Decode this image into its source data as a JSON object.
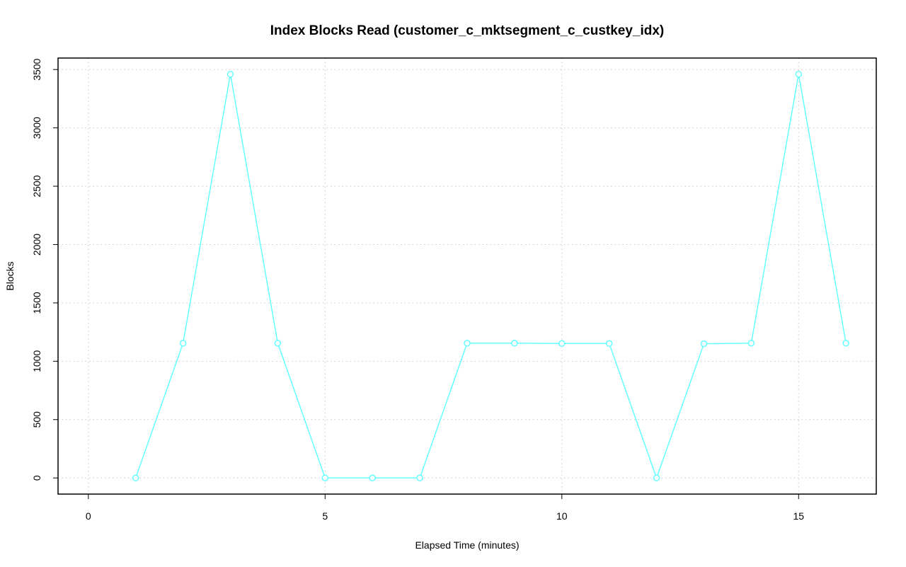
{
  "chart_data": {
    "type": "line",
    "title": "Index Blocks Read (customer_c_mktsegment_c_custkey_idx)",
    "x_label": "Elapsed Time (minutes)",
    "y_label": "Blocks",
    "x": [
      1,
      2,
      3,
      4,
      5,
      6,
      7,
      8,
      9,
      10,
      11,
      12,
      13,
      14,
      15,
      16
    ],
    "series": [
      {
        "color": "#66ffff",
        "values": [
          0,
          1155,
          3460,
          1155,
          0,
          0,
          0,
          1155,
          1155,
          1152,
          1152,
          0,
          1150,
          1155,
          3460,
          1155
        ]
      }
    ],
    "xlim": [
      -0.64,
      16.64
    ],
    "ylim": [
      -138.4,
      3598.4
    ],
    "xticks": [
      0,
      5,
      10,
      15
    ],
    "yticks": [
      0,
      500,
      1000,
      1500,
      2000,
      2500,
      3000,
      3500
    ],
    "grid": true
  }
}
